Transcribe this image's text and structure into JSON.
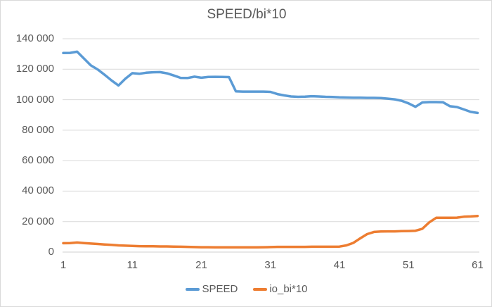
{
  "chart_data": {
    "type": "line",
    "title": "SPEED/bi*10",
    "xlabel": "",
    "ylabel": "",
    "grid": true,
    "legend_position": "bottom",
    "xlim": [
      1,
      61
    ],
    "ylim": [
      0,
      140000
    ],
    "x_tick_values": [
      1,
      11,
      21,
      31,
      41,
      51,
      61
    ],
    "y_ticks": [
      {
        "v": 0,
        "label": "0"
      },
      {
        "v": 20000,
        "label": "20 000"
      },
      {
        "v": 40000,
        "label": "40 000"
      },
      {
        "v": 60000,
        "label": "60 000"
      },
      {
        "v": 80000,
        "label": "80 000"
      },
      {
        "v": 100000,
        "label": "100 000"
      },
      {
        "v": 120000,
        "label": "120 000"
      },
      {
        "v": 140000,
        "label": "140 000"
      }
    ],
    "x": [
      1,
      2,
      3,
      4,
      5,
      6,
      7,
      8,
      9,
      10,
      11,
      12,
      13,
      14,
      15,
      16,
      17,
      18,
      19,
      20,
      21,
      22,
      23,
      24,
      25,
      26,
      27,
      28,
      29,
      30,
      31,
      32,
      33,
      34,
      35,
      36,
      37,
      38,
      39,
      40,
      41,
      42,
      43,
      44,
      45,
      46,
      47,
      48,
      49,
      50,
      51,
      52,
      53,
      54,
      55,
      56,
      57,
      58,
      59,
      60,
      61
    ],
    "series": [
      {
        "name": "SPEED",
        "color": "#5b9bd5",
        "values": [
          130600,
          130700,
          131500,
          127000,
          122500,
          119800,
          116300,
          112600,
          109300,
          113800,
          117400,
          117000,
          117700,
          118000,
          118100,
          117300,
          115900,
          114300,
          114200,
          115100,
          114400,
          114900,
          115000,
          114900,
          114800,
          105500,
          105300,
          105300,
          105300,
          105300,
          105100,
          103700,
          102800,
          102100,
          101900,
          102000,
          102300,
          102100,
          101900,
          101800,
          101500,
          101400,
          101300,
          101300,
          101200,
          101200,
          101100,
          100700,
          100200,
          99300,
          97600,
          95300,
          98200,
          98400,
          98400,
          98300,
          95700,
          95200,
          93600,
          92000,
          91300
        ]
      },
      {
        "name": "io_bi*10",
        "color": "#ed7d31",
        "values": [
          5800,
          5900,
          6300,
          5900,
          5600,
          5300,
          5000,
          4700,
          4400,
          4200,
          4000,
          3900,
          3800,
          3800,
          3700,
          3700,
          3600,
          3500,
          3400,
          3300,
          3200,
          3200,
          3100,
          3100,
          3100,
          3100,
          3100,
          3100,
          3100,
          3200,
          3300,
          3400,
          3400,
          3400,
          3400,
          3400,
          3500,
          3500,
          3500,
          3500,
          3600,
          4400,
          6000,
          9000,
          11800,
          13200,
          13500,
          13600,
          13600,
          13700,
          13800,
          14000,
          15300,
          19500,
          22500,
          22500,
          22500,
          22600,
          23200,
          23400,
          23700
        ]
      }
    ],
    "colors": {
      "gridline": "#d9d9d9",
      "axis_line": "#d0d0d0",
      "text": "#595959"
    }
  }
}
